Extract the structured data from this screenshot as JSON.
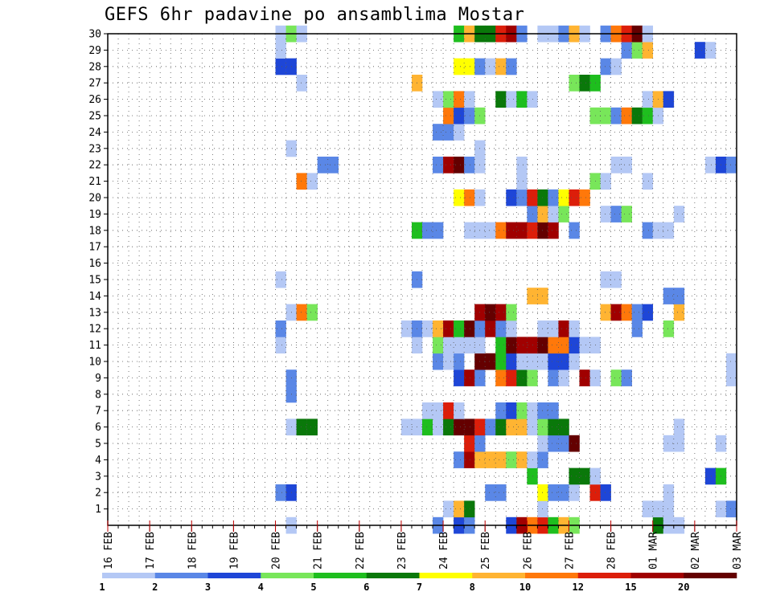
{
  "colors": [
    "#b4c8f5",
    "#5a87e6",
    "#1e46d7",
    "#78e65a",
    "#1ebe1e",
    "#0a780a",
    "#ffff00",
    "#ffb432",
    "#ff780a",
    "#dc1e0a",
    "#a00000",
    "#640000"
  ],
  "legend": {
    "labels": [
      "1",
      "2",
      "3",
      "4",
      "5",
      "6",
      "7",
      "8",
      "10",
      "12",
      "15",
      "20"
    ]
  },
  "chart_data": {
    "type": "heatmap",
    "title": "GEFS 6hr padavine po ansamblima Mostar",
    "xlabel": "",
    "ylabel": "",
    "x_ticks": [
      "16 FEB",
      "17 FEB",
      "18 FEB",
      "19 FEB",
      "20 FEB",
      "21 FEB",
      "22 FEB",
      "23 FEB",
      "24 FEB",
      "25 FEB",
      "26 FEB",
      "27 FEB",
      "28 FEB",
      "01 MAR",
      "02 MAR",
      "03 MAR"
    ],
    "y_ticks": [
      "1",
      "2",
      "3",
      "4",
      "5",
      "6",
      "7",
      "8",
      "9",
      "10",
      "11",
      "12",
      "13",
      "14",
      "15",
      "16",
      "17",
      "18",
      "19",
      "20",
      "21",
      "22",
      "23",
      "24",
      "25",
      "26",
      "27",
      "28",
      "29",
      "30"
    ],
    "x_range": [
      "16 FEB 00Z",
      "03 MAR 00Z"
    ],
    "y_range": [
      0,
      30
    ],
    "time_step": "6hr",
    "grid": true,
    "legend_placement": "bottom",
    "cells_note": "member: list of [6-hour step index from 16 FEB 00Z, colour class 0-11]",
    "cells": {
      "30": [
        [
          16,
          0
        ],
        [
          17,
          3
        ],
        [
          18,
          0
        ],
        [
          33,
          4
        ],
        [
          34,
          7
        ],
        [
          35,
          5
        ],
        [
          36,
          5
        ],
        [
          37,
          9
        ],
        [
          38,
          10
        ],
        [
          39,
          1
        ],
        [
          41,
          0
        ],
        [
          42,
          0
        ],
        [
          43,
          1
        ],
        [
          44,
          7
        ],
        [
          45,
          0
        ],
        [
          47,
          1
        ],
        [
          48,
          8
        ],
        [
          49,
          9
        ],
        [
          50,
          11
        ],
        [
          51,
          0
        ]
      ],
      "29": [
        [
          16,
          0
        ],
        [
          49,
          1
        ],
        [
          50,
          3
        ],
        [
          51,
          7
        ],
        [
          56,
          2
        ],
        [
          57,
          0
        ]
      ],
      "28": [
        [
          16,
          2
        ],
        [
          17,
          2
        ],
        [
          33,
          6
        ],
        [
          34,
          6
        ],
        [
          35,
          1
        ],
        [
          36,
          0
        ],
        [
          37,
          7
        ],
        [
          38,
          1
        ],
        [
          47,
          1
        ],
        [
          48,
          0
        ]
      ],
      "27": [
        [
          18,
          0
        ],
        [
          29,
          7
        ],
        [
          44,
          3
        ],
        [
          45,
          5
        ],
        [
          46,
          4
        ]
      ],
      "26": [
        [
          31,
          0
        ],
        [
          32,
          3
        ],
        [
          33,
          8
        ],
        [
          34,
          0
        ],
        [
          37,
          5
        ],
        [
          38,
          0
        ],
        [
          39,
          4
        ],
        [
          40,
          0
        ],
        [
          51,
          0
        ],
        [
          52,
          7
        ],
        [
          53,
          2
        ]
      ],
      "25": [
        [
          32,
          8
        ],
        [
          33,
          2
        ],
        [
          34,
          1
        ],
        [
          35,
          3
        ],
        [
          46,
          3
        ],
        [
          47,
          3
        ],
        [
          48,
          1
        ],
        [
          49,
          8
        ],
        [
          50,
          5
        ],
        [
          51,
          4
        ],
        [
          52,
          0
        ]
      ],
      "24": [
        [
          31,
          1
        ],
        [
          32,
          1
        ],
        [
          33,
          0
        ]
      ],
      "23": [
        [
          17,
          0
        ],
        [
          35,
          0
        ]
      ],
      "22": [
        [
          20,
          1
        ],
        [
          21,
          1
        ],
        [
          31,
          1
        ],
        [
          32,
          10
        ],
        [
          33,
          11
        ],
        [
          34,
          1
        ],
        [
          35,
          0
        ],
        [
          39,
          0
        ],
        [
          48,
          0
        ],
        [
          49,
          0
        ],
        [
          57,
          0
        ],
        [
          58,
          2
        ],
        [
          59,
          1
        ]
      ],
      "21": [
        [
          18,
          8
        ],
        [
          19,
          0
        ],
        [
          39,
          0
        ],
        [
          46,
          3
        ],
        [
          47,
          0
        ],
        [
          51,
          0
        ]
      ],
      "20": [
        [
          33,
          6
        ],
        [
          34,
          8
        ],
        [
          35,
          0
        ],
        [
          38,
          2
        ],
        [
          39,
          1
        ],
        [
          40,
          9
        ],
        [
          41,
          5
        ],
        [
          42,
          1
        ],
        [
          43,
          6
        ],
        [
          44,
          9
        ],
        [
          45,
          8
        ]
      ],
      "19": [
        [
          40,
          1
        ],
        [
          41,
          7
        ],
        [
          42,
          0
        ],
        [
          43,
          3
        ],
        [
          47,
          0
        ],
        [
          48,
          1
        ],
        [
          49,
          3
        ],
        [
          54,
          0
        ]
      ],
      "18": [
        [
          29,
          4
        ],
        [
          30,
          1
        ],
        [
          31,
          1
        ],
        [
          34,
          0
        ],
        [
          35,
          0
        ],
        [
          36,
          0
        ],
        [
          37,
          8
        ],
        [
          38,
          10
        ],
        [
          39,
          10
        ],
        [
          40,
          9
        ],
        [
          41,
          11
        ],
        [
          42,
          10
        ],
        [
          44,
          1
        ],
        [
          51,
          1
        ],
        [
          52,
          0
        ],
        [
          53,
          0
        ]
      ],
      "16": [],
      "15": [
        [
          16,
          0
        ],
        [
          29,
          1
        ],
        [
          47,
          0
        ],
        [
          48,
          0
        ]
      ],
      "14": [
        [
          40,
          7
        ],
        [
          41,
          7
        ],
        [
          53,
          1
        ],
        [
          54,
          1
        ]
      ],
      "13": [
        [
          17,
          0
        ],
        [
          18,
          8
        ],
        [
          19,
          3
        ],
        [
          35,
          10
        ],
        [
          36,
          11
        ],
        [
          37,
          10
        ],
        [
          38,
          3
        ],
        [
          47,
          7
        ],
        [
          48,
          10
        ],
        [
          49,
          8
        ],
        [
          50,
          1
        ],
        [
          51,
          2
        ],
        [
          54,
          7
        ]
      ],
      "12": [
        [
          16,
          1
        ],
        [
          28,
          0
        ],
        [
          29,
          1
        ],
        [
          30,
          0
        ],
        [
          31,
          7
        ],
        [
          32,
          10
        ],
        [
          33,
          4
        ],
        [
          34,
          11
        ],
        [
          35,
          1
        ],
        [
          36,
          10
        ],
        [
          37,
          1
        ],
        [
          38,
          0
        ],
        [
          41,
          0
        ],
        [
          42,
          0
        ],
        [
          43,
          10
        ],
        [
          44,
          0
        ],
        [
          50,
          1
        ],
        [
          53,
          3
        ]
      ],
      "11": [
        [
          16,
          0
        ],
        [
          29,
          0
        ],
        [
          31,
          3
        ],
        [
          32,
          0
        ],
        [
          33,
          0
        ],
        [
          34,
          0
        ],
        [
          35,
          0
        ],
        [
          37,
          4
        ],
        [
          38,
          11
        ],
        [
          39,
          10
        ],
        [
          40,
          10
        ],
        [
          41,
          11
        ],
        [
          42,
          8
        ],
        [
          43,
          8
        ],
        [
          44,
          2
        ],
        [
          45,
          0
        ],
        [
          46,
          0
        ]
      ],
      "10": [
        [
          31,
          1
        ],
        [
          32,
          0
        ],
        [
          33,
          1
        ],
        [
          35,
          11
        ],
        [
          36,
          11
        ],
        [
          37,
          4
        ],
        [
          38,
          2
        ],
        [
          39,
          0
        ],
        [
          40,
          0
        ],
        [
          41,
          0
        ],
        [
          42,
          2
        ],
        [
          43,
          2
        ],
        [
          44,
          0
        ],
        [
          59,
          0
        ]
      ],
      "9": [
        [
          17,
          1
        ],
        [
          33,
          2
        ],
        [
          34,
          10
        ],
        [
          35,
          1
        ],
        [
          37,
          8
        ],
        [
          38,
          9
        ],
        [
          39,
          5
        ],
        [
          40,
          3
        ],
        [
          42,
          1
        ],
        [
          43,
          0
        ],
        [
          45,
          10
        ],
        [
          46,
          0
        ],
        [
          48,
          3
        ],
        [
          49,
          1
        ],
        [
          59,
          0
        ]
      ],
      "8": [
        [
          17,
          1
        ]
      ],
      "7": [
        [
          30,
          0
        ],
        [
          31,
          0
        ],
        [
          32,
          9
        ],
        [
          33,
          0
        ],
        [
          37,
          1
        ],
        [
          38,
          2
        ],
        [
          39,
          3
        ],
        [
          40,
          0
        ],
        [
          41,
          1
        ],
        [
          42,
          1
        ]
      ],
      "6": [
        [
          17,
          0
        ],
        [
          18,
          5
        ],
        [
          19,
          5
        ],
        [
          28,
          0
        ],
        [
          29,
          0
        ],
        [
          30,
          4
        ],
        [
          31,
          0
        ],
        [
          32,
          5
        ],
        [
          33,
          11
        ],
        [
          34,
          11
        ],
        [
          35,
          9
        ],
        [
          36,
          1
        ],
        [
          37,
          5
        ],
        [
          38,
          7
        ],
        [
          39,
          7
        ],
        [
          40,
          0
        ],
        [
          41,
          3
        ],
        [
          42,
          5
        ],
        [
          43,
          5
        ],
        [
          54,
          0
        ]
      ],
      "5": [
        [
          34,
          9
        ],
        [
          35,
          1
        ],
        [
          41,
          0
        ],
        [
          42,
          1
        ],
        [
          43,
          1
        ],
        [
          44,
          11
        ],
        [
          53,
          0
        ],
        [
          54,
          0
        ],
        [
          58,
          0
        ]
      ],
      "4": [
        [
          33,
          1
        ],
        [
          34,
          10
        ],
        [
          35,
          7
        ],
        [
          36,
          7
        ],
        [
          37,
          7
        ],
        [
          38,
          3
        ],
        [
          39,
          7
        ],
        [
          40,
          0
        ],
        [
          41,
          1
        ]
      ],
      "3": [
        [
          40,
          4
        ],
        [
          44,
          5
        ],
        [
          45,
          5
        ],
        [
          46,
          0
        ],
        [
          57,
          2
        ],
        [
          58,
          4
        ]
      ],
      "2": [
        [
          16,
          1
        ],
        [
          17,
          2
        ],
        [
          36,
          1
        ],
        [
          37,
          1
        ],
        [
          41,
          6
        ],
        [
          42,
          1
        ],
        [
          43,
          1
        ],
        [
          44,
          0
        ],
        [
          46,
          9
        ],
        [
          47,
          2
        ],
        [
          53,
          0
        ]
      ],
      "1": [
        [
          32,
          0
        ],
        [
          33,
          7
        ],
        [
          34,
          5
        ],
        [
          41,
          0
        ],
        [
          51,
          0
        ],
        [
          52,
          0
        ],
        [
          53,
          0
        ],
        [
          58,
          0
        ],
        [
          59,
          1
        ]
      ],
      "0": [
        [
          17,
          0
        ],
        [
          31,
          1
        ],
        [
          33,
          2
        ],
        [
          34,
          1
        ],
        [
          38,
          2
        ],
        [
          39,
          10
        ],
        [
          40,
          8
        ],
        [
          41,
          9
        ],
        [
          42,
          4
        ],
        [
          43,
          7
        ],
        [
          44,
          3
        ],
        [
          52,
          5
        ],
        [
          53,
          0
        ],
        [
          54,
          0
        ]
      ]
    }
  }
}
